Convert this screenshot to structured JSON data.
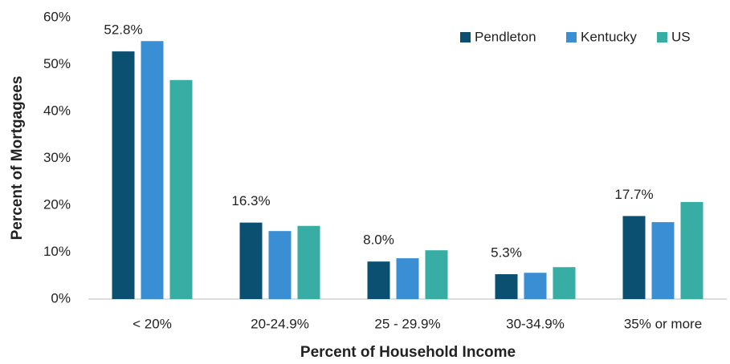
{
  "chart_data": {
    "type": "bar",
    "x_label": "Percent of Household Income",
    "y_label": "Percent of Mortgagees",
    "categories": [
      "< 20%",
      "20-24.9%",
      "25 - 29.9%",
      "30-34.9%",
      "35% or more"
    ],
    "series": [
      {
        "name": "Pendleton",
        "color": "#0b4f71",
        "values": [
          52.8,
          16.3,
          8.0,
          5.3,
          17.7
        ],
        "value_labels": [
          "52.8%",
          "16.3%",
          "8.0%",
          "5.3%",
          "17.7%"
        ]
      },
      {
        "name": "Kentucky",
        "color": "#3a8fd4",
        "values": [
          55.0,
          14.5,
          8.7,
          5.6,
          16.4
        ]
      },
      {
        "name": "US",
        "color": "#37ada4",
        "values": [
          46.7,
          15.6,
          10.4,
          6.8,
          20.7
        ]
      }
    ],
    "ylim": [
      0,
      60
    ],
    "yticks": [
      {
        "value": 0,
        "label": "0%"
      },
      {
        "value": 10,
        "label": "10%"
      },
      {
        "value": 20,
        "label": "20%"
      },
      {
        "value": 30,
        "label": "30%"
      },
      {
        "value": 40,
        "label": "40%"
      },
      {
        "value": 50,
        "label": "50%"
      },
      {
        "value": 60,
        "label": "60%"
      }
    ],
    "legend": "top-right",
    "grid": false
  }
}
